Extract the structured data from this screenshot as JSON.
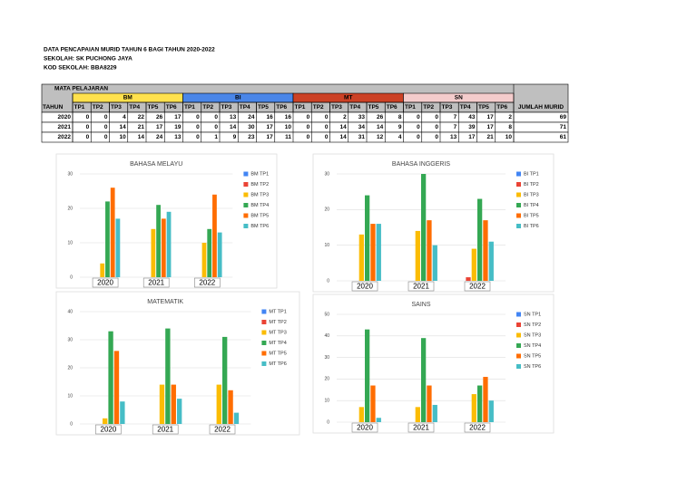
{
  "header": {
    "title": "DATA PENCAPAIAN MURID TAHUN 6 BAGI TAHUN 2020-2022",
    "school": "SEKOLAH: SK PUCHONG JAYA",
    "code": "KOD SEKOLAH: BBA8229"
  },
  "table": {
    "corner": "MATA PELAJARAN",
    "year_header": "TAHUN",
    "total_header": "JUMLAH MURID",
    "groups": [
      {
        "name": "BM",
        "color": "#ffe14d"
      },
      {
        "name": "BI",
        "color": "#4a86e8"
      },
      {
        "name": "MT",
        "color": "#cc4125"
      },
      {
        "name": "SN",
        "color": "#f4cccc"
      }
    ],
    "levels": [
      "TP1",
      "TP2",
      "TP3",
      "TP4",
      "TP5",
      "TP6"
    ],
    "rows": [
      {
        "year": "2020",
        "values": [
          0,
          0,
          4,
          22,
          26,
          17,
          0,
          0,
          13,
          24,
          16,
          16,
          0,
          0,
          2,
          33,
          26,
          8,
          0,
          0,
          7,
          43,
          17,
          2
        ],
        "total": 69
      },
      {
        "year": "2021",
        "values": [
          0,
          0,
          14,
          21,
          17,
          19,
          0,
          0,
          14,
          30,
          17,
          10,
          0,
          0,
          14,
          34,
          14,
          9,
          0,
          0,
          7,
          39,
          17,
          8
        ],
        "total": 71
      },
      {
        "year": "2022",
        "values": [
          0,
          0,
          10,
          14,
          24,
          13,
          0,
          1,
          9,
          23,
          17,
          11,
          0,
          0,
          14,
          31,
          12,
          4,
          0,
          0,
          13,
          17,
          21,
          10
        ],
        "total": 61
      }
    ]
  },
  "chart_data": [
    {
      "type": "bar",
      "title": "BAHASA MELAYU",
      "categories": [
        "2020",
        "2021",
        "2022"
      ],
      "ylim": [
        0,
        30
      ],
      "yticks": [
        0,
        10,
        20,
        30
      ],
      "grid": true,
      "legend": "right",
      "series": [
        {
          "name": "BM TP1",
          "color": "#4285f4",
          "values": [
            0,
            0,
            0
          ]
        },
        {
          "name": "BM TP2",
          "color": "#ea4335",
          "values": [
            0,
            0,
            0
          ]
        },
        {
          "name": "BM TP3",
          "color": "#fbbc04",
          "values": [
            4,
            14,
            10
          ]
        },
        {
          "name": "BM TP4",
          "color": "#34a853",
          "values": [
            22,
            21,
            14
          ]
        },
        {
          "name": "BM TP5",
          "color": "#ff6d01",
          "values": [
            26,
            17,
            24
          ]
        },
        {
          "name": "BM TP6",
          "color": "#46bdc6",
          "values": [
            17,
            19,
            13
          ]
        }
      ]
    },
    {
      "type": "bar",
      "title": "BAHASA INGGERIS",
      "categories": [
        "2020",
        "2021",
        "2022"
      ],
      "ylim": [
        0,
        30
      ],
      "yticks": [
        0,
        10,
        20,
        30
      ],
      "grid": true,
      "legend": "right",
      "series": [
        {
          "name": "BI TP1",
          "color": "#4285f4",
          "values": [
            0,
            0,
            0
          ]
        },
        {
          "name": "BI TP2",
          "color": "#ea4335",
          "values": [
            0,
            0,
            1
          ]
        },
        {
          "name": "BI TP3",
          "color": "#fbbc04",
          "values": [
            13,
            14,
            9
          ]
        },
        {
          "name": "BI TP4",
          "color": "#34a853",
          "values": [
            24,
            30,
            23
          ]
        },
        {
          "name": "BI TP5",
          "color": "#ff6d01",
          "values": [
            16,
            17,
            17
          ]
        },
        {
          "name": "BI TP6",
          "color": "#46bdc6",
          "values": [
            16,
            10,
            11
          ]
        }
      ]
    },
    {
      "type": "bar",
      "title": "MATEMATIK",
      "categories": [
        "2020",
        "2021",
        "2022"
      ],
      "ylim": [
        0,
        40
      ],
      "yticks": [
        0,
        10,
        20,
        30,
        40
      ],
      "grid": true,
      "legend": "right",
      "series": [
        {
          "name": "MT TP1",
          "color": "#4285f4",
          "values": [
            0,
            0,
            0
          ]
        },
        {
          "name": "MT TP2",
          "color": "#ea4335",
          "values": [
            0,
            0,
            0
          ]
        },
        {
          "name": "MT TP3",
          "color": "#fbbc04",
          "values": [
            2,
            14,
            14
          ]
        },
        {
          "name": "MT TP4",
          "color": "#34a853",
          "values": [
            33,
            34,
            31
          ]
        },
        {
          "name": "MT TP5",
          "color": "#ff6d01",
          "values": [
            26,
            14,
            12
          ]
        },
        {
          "name": "MT TP6",
          "color": "#46bdc6",
          "values": [
            8,
            9,
            4
          ]
        }
      ]
    },
    {
      "type": "bar",
      "title": "SAINS",
      "categories": [
        "2020",
        "2021",
        "2022"
      ],
      "ylim": [
        0,
        50
      ],
      "yticks": [
        0,
        10,
        20,
        30,
        40,
        50
      ],
      "grid": true,
      "legend": "right",
      "series": [
        {
          "name": "SN TP1",
          "color": "#4285f4",
          "values": [
            0,
            0,
            0
          ]
        },
        {
          "name": "SN TP2",
          "color": "#ea4335",
          "values": [
            0,
            0,
            0
          ]
        },
        {
          "name": "SN TP3",
          "color": "#fbbc04",
          "values": [
            7,
            7,
            13
          ]
        },
        {
          "name": "SN TP4",
          "color": "#34a853",
          "values": [
            43,
            39,
            17
          ]
        },
        {
          "name": "SN TP5",
          "color": "#ff6d01",
          "values": [
            17,
            17,
            21
          ]
        },
        {
          "name": "SN TP6",
          "color": "#46bdc6",
          "values": [
            2,
            8,
            10
          ]
        }
      ]
    }
  ]
}
